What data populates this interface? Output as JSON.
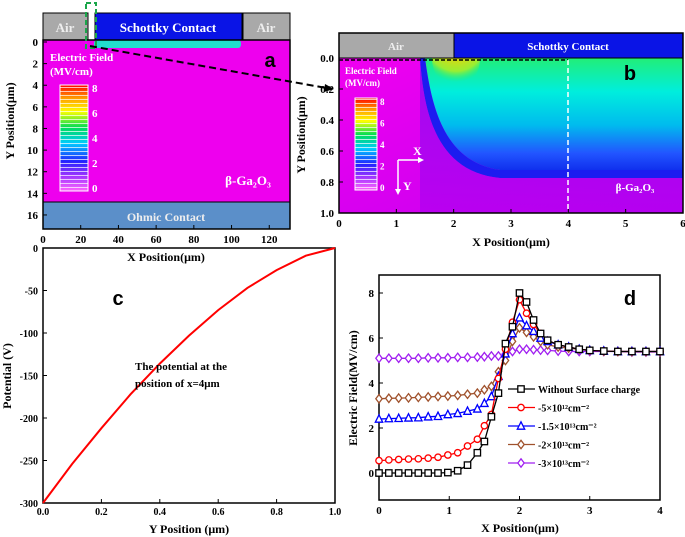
{
  "chart_data": [
    {
      "panel_label": "a",
      "type": "heatmap",
      "xlabel": "X Position(μm)",
      "ylabel": "Y Position(μm)",
      "xticks": [
        0,
        20,
        40,
        60,
        80,
        100,
        120
      ],
      "yticks": [
        0,
        2,
        4,
        6,
        8,
        10,
        12,
        14,
        16
      ],
      "xlim": [
        0,
        131
      ],
      "ylim": [
        17.5,
        -2.5
      ],
      "regions": {
        "air_left": "Air",
        "schottky": "Schottky Contact",
        "air_right": "Air",
        "ohmic": "Ohmic Contact",
        "material": "β-Ga₂O₃"
      },
      "colorbar": {
        "title": "Electric Field",
        "unit": "(MV/cm)",
        "ticks": [
          0,
          2,
          4,
          6,
          8
        ]
      },
      "colors": {
        "air": "#a9a9a9",
        "schottky": "#0a14e6",
        "ohmic": "#5b8fc9",
        "substrate": "#ee00ee",
        "zoom_box": "#1aa64a"
      }
    },
    {
      "panel_label": "b",
      "type": "heatmap",
      "xlabel": "X Position(μm)",
      "ylabel": "Y Position(μm)",
      "xticks": [
        0,
        1,
        2,
        3,
        4,
        5,
        6
      ],
      "yticks": [
        "0.0",
        "0.2",
        "0.4",
        "0.6",
        "0.8",
        "1.0"
      ],
      "xlim": [
        0,
        6
      ],
      "ylim": [
        1.0,
        0.0
      ],
      "regions": {
        "air": "Air",
        "schottky": "Schottky Contact",
        "material": "β-Ga₂O₃"
      },
      "axes_arrows": {
        "x": "X",
        "y": "Y"
      },
      "cut_line_x": 4,
      "colorbar": {
        "title": "Electric Field",
        "unit": "(MV/cm)",
        "ticks": [
          0,
          2,
          4,
          6,
          8
        ]
      }
    },
    {
      "panel_label": "c",
      "type": "line",
      "xlabel": "Y Position (μm)",
      "ylabel": "Potential (V)",
      "annotation": [
        "The potential at the",
        "position of x=4μm"
      ],
      "xlim": [
        0,
        1.0
      ],
      "ylim": [
        -300,
        0
      ],
      "xticks": [
        "0.0",
        "0.2",
        "0.4",
        "0.6",
        "0.8",
        "1.0"
      ],
      "yticks": [
        0,
        -50,
        -100,
        -150,
        -200,
        -250,
        -300
      ],
      "color": "#ff0000",
      "x": [
        0,
        0.1,
        0.2,
        0.3,
        0.4,
        0.5,
        0.6,
        0.7,
        0.8,
        0.9,
        1.0
      ],
      "y": [
        -300,
        -254,
        -212,
        -172,
        -136,
        -103,
        -73,
        -47,
        -26,
        -9,
        0
      ]
    },
    {
      "panel_label": "d",
      "type": "line",
      "xlabel": "X Position(μm)",
      "ylabel": "Electric Field(MV/cm)",
      "xlim": [
        0,
        4
      ],
      "ylim": [
        -1.2,
        8.8
      ],
      "xticks": [
        0,
        1,
        2,
        3,
        4
      ],
      "yticks": [
        0,
        2,
        4,
        6,
        8
      ],
      "legend_position": "center-right",
      "x": [
        0,
        0.14,
        0.28,
        0.42,
        0.56,
        0.7,
        0.84,
        0.98,
        1.12,
        1.26,
        1.4,
        1.5,
        1.6,
        1.7,
        1.8,
        1.9,
        2.0,
        2.1,
        2.2,
        2.3,
        2.4,
        2.55,
        2.7,
        2.85,
        3.0,
        3.2,
        3.4,
        3.6,
        3.8,
        4.0
      ],
      "series": [
        {
          "name": "Without Surface charge",
          "color": "#000000",
          "marker": "square",
          "values": [
            0,
            0,
            0,
            0,
            0,
            0,
            0,
            0.02,
            0.1,
            0.35,
            0.9,
            1.4,
            2.5,
            3.55,
            5.75,
            6.5,
            8.0,
            7.6,
            6.8,
            6.2,
            5.9,
            5.7,
            5.6,
            5.5,
            5.45,
            5.42,
            5.4,
            5.4,
            5.4,
            5.4
          ]
        },
        {
          "name": "-5×10¹²cm⁻²",
          "color": "#ff0000",
          "marker": "circle",
          "values": [
            0.55,
            0.58,
            0.6,
            0.62,
            0.63,
            0.66,
            0.7,
            0.8,
            0.9,
            1.2,
            1.5,
            2.1,
            2.6,
            4.2,
            5.5,
            6.7,
            7.7,
            7.1,
            6.6,
            6.2,
            5.9,
            5.7,
            5.6,
            5.5,
            5.45,
            5.42,
            5.4,
            5.4,
            5.4,
            5.4
          ]
        },
        {
          "name": "-1.5×10¹³cm⁻²",
          "color": "#0000ff",
          "marker": "triangle",
          "values": [
            2.4,
            2.42,
            2.43,
            2.45,
            2.46,
            2.5,
            2.52,
            2.6,
            2.65,
            2.75,
            2.85,
            3.1,
            3.4,
            4.3,
            5.3,
            6.2,
            6.9,
            6.55,
            6.3,
            6.0,
            5.85,
            5.7,
            5.6,
            5.5,
            5.45,
            5.42,
            5.4,
            5.4,
            5.4,
            5.4
          ]
        },
        {
          "name": "-2×10¹³cm⁻²",
          "color": "#a0522d",
          "marker": "diamond",
          "values": [
            3.3,
            3.32,
            3.33,
            3.34,
            3.36,
            3.38,
            3.4,
            3.42,
            3.45,
            3.5,
            3.55,
            3.7,
            3.85,
            4.5,
            5.0,
            5.85,
            6.45,
            6.25,
            6.05,
            5.85,
            5.7,
            5.6,
            5.55,
            5.5,
            5.45,
            5.42,
            5.4,
            5.4,
            5.4,
            5.4
          ]
        },
        {
          "name": "-3×10¹³cm⁻²",
          "color": "#a020f0",
          "marker": "diamond",
          "values": [
            5.1,
            5.1,
            5.1,
            5.1,
            5.1,
            5.12,
            5.12,
            5.12,
            5.14,
            5.14,
            5.15,
            5.17,
            5.2,
            5.2,
            5.3,
            5.4,
            5.5,
            5.5,
            5.48,
            5.46,
            5.45,
            5.42,
            5.4,
            5.4,
            5.4,
            5.4,
            5.4,
            5.38,
            5.38,
            5.38
          ]
        }
      ]
    }
  ]
}
